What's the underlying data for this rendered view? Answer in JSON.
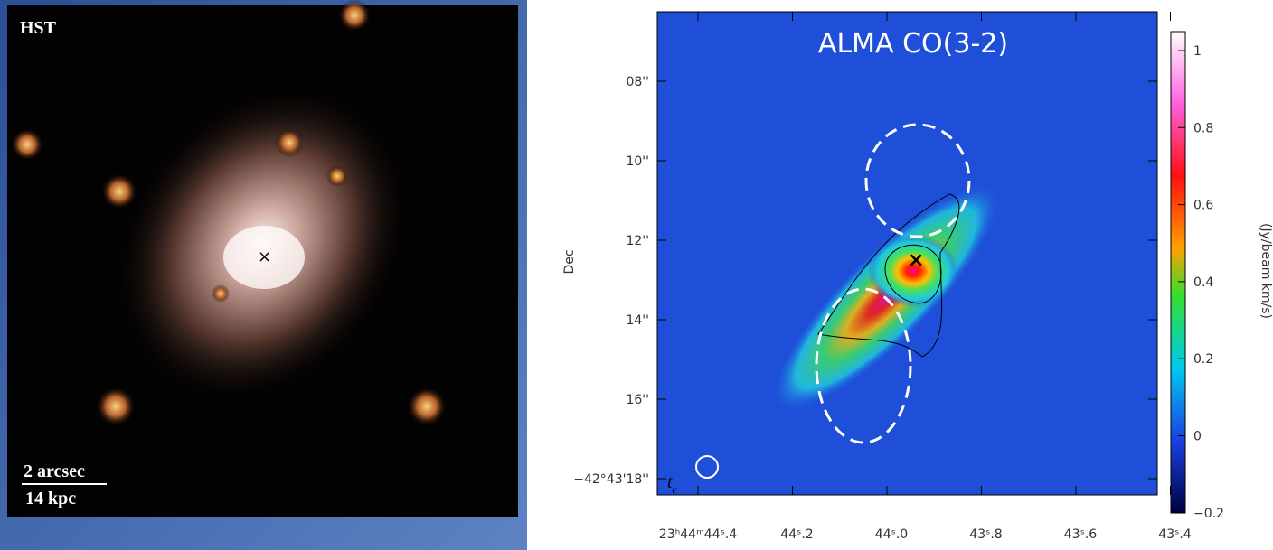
{
  "left_panel": {
    "label": "HST",
    "scale_top": "2 arcsec",
    "scale_bottom": "14 kpc"
  },
  "right_panel": {
    "title": "ALMA CO(3-2)",
    "y_axis_label": "Dec",
    "y_ticks": [
      "08''",
      "10''",
      "12''",
      "14''",
      "16''",
      "−42°43'18''"
    ],
    "x_ticks": [
      "23ʰ44ᵐ44ˢ.4",
      "44ˢ.2",
      "44ˢ.0",
      "43ˢ.8",
      "43ˢ.6",
      "43ˢ.4"
    ],
    "beam_label_main": "t",
    "beam_label_sub": "c",
    "colorbar_ticks": [
      "1",
      "0.8",
      "0.6",
      "0.4",
      "0.2",
      "0",
      "−0.2"
    ],
    "colorbar_label": "(Jy/beam km/s)"
  }
}
